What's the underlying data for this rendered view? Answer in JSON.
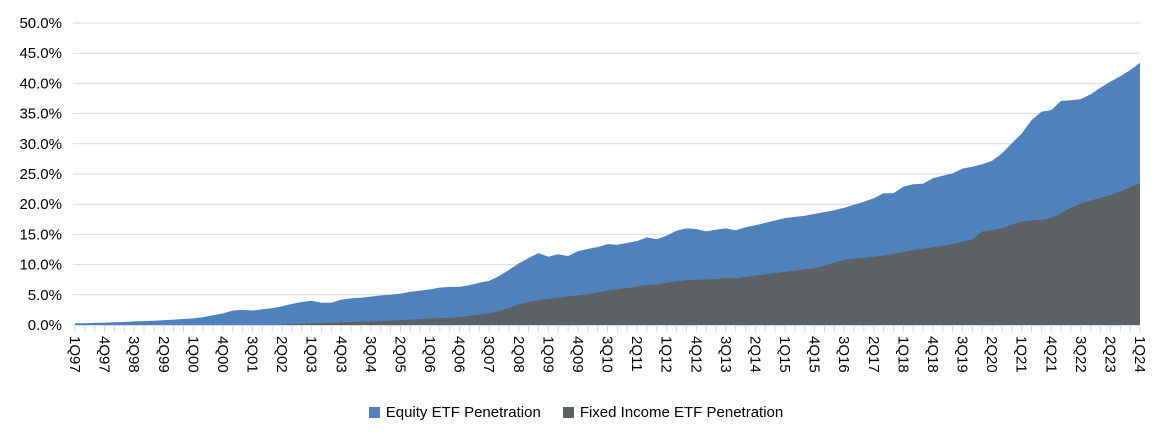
{
  "chart_data": {
    "type": "area",
    "mode": "overlapping",
    "title": "",
    "xlabel": "",
    "ylabel": "",
    "grid": true,
    "legend_position": "bottom",
    "x_unit": "quarter",
    "x_start": "1Q97",
    "x_end": "1Q24",
    "x_label_every_n_points": 3,
    "x_tick_labels": [
      "1Q97",
      "4Q97",
      "3Q98",
      "2Q99",
      "1Q00",
      "4Q00",
      "3Q01",
      "2Q02",
      "1Q03",
      "4Q03",
      "3Q04",
      "2Q05",
      "1Q06",
      "4Q06",
      "3Q07",
      "2Q08",
      "1Q09",
      "4Q09",
      "3Q10",
      "2Q11",
      "1Q12",
      "4Q12",
      "3Q13",
      "2Q14",
      "1Q15",
      "4Q15",
      "3Q16",
      "2Q17",
      "1Q18",
      "4Q18",
      "3Q19",
      "2Q20",
      "1Q21",
      "4Q21",
      "3Q22",
      "2Q23",
      "1Q24"
    ],
    "y_axis": {
      "min": 0,
      "max": 50,
      "step": 5,
      "tick_labels": [
        "50.0%",
        "45.0%",
        "40.0%",
        "35.0%",
        "30.0%",
        "25.0%",
        "20.0%",
        "15.0%",
        "10.0%",
        "5.0%",
        "0.0%"
      ]
    },
    "colors": {
      "gridline": "#D9D9D9",
      "axis_tick": "#D9D9D9",
      "text": "#000000"
    },
    "series": [
      {
        "name": "Equity ETF Penetration",
        "color": "#4F81BD",
        "values": [
          0.3,
          0.3,
          0.35,
          0.4,
          0.45,
          0.5,
          0.6,
          0.65,
          0.7,
          0.8,
          0.9,
          1.0,
          1.1,
          1.3,
          1.6,
          1.9,
          2.4,
          2.5,
          2.4,
          2.6,
          2.8,
          3.1,
          3.5,
          3.8,
          4.0,
          3.7,
          3.7,
          4.2,
          4.4,
          4.5,
          4.7,
          4.9,
          5.0,
          5.2,
          5.5,
          5.7,
          5.9,
          6.2,
          6.3,
          6.3,
          6.6,
          7.0,
          7.3,
          8.1,
          9.1,
          10.2,
          11.1,
          11.9,
          11.3,
          11.7,
          11.4,
          12.2,
          12.6,
          12.9,
          13.4,
          13.3,
          13.6,
          13.9,
          14.5,
          14.2,
          14.8,
          15.6,
          16.0,
          15.9,
          15.5,
          15.8,
          16.0,
          15.7,
          16.2,
          16.5,
          16.9,
          17.3,
          17.7,
          17.9,
          18.1,
          18.4,
          18.7,
          19.0,
          19.4,
          19.9,
          20.4,
          21.0,
          21.8,
          21.8,
          22.9,
          23.3,
          23.4,
          24.3,
          24.7,
          25.1,
          25.9,
          26.2,
          26.6,
          27.2,
          28.4,
          30.1,
          31.7,
          33.9,
          35.3,
          35.6,
          37.1,
          37.2,
          37.4,
          38.2,
          39.3,
          40.3,
          41.2,
          42.2,
          43.4
        ]
      },
      {
        "name": "Fixed Income ETF Penetration",
        "color": "#5E6164",
        "values": [
          0,
          0,
          0,
          0,
          0,
          0,
          0,
          0,
          0,
          0,
          0,
          0,
          0,
          0,
          0,
          0,
          0,
          0,
          0,
          0,
          0,
          0.05,
          0.1,
          0.2,
          0.3,
          0.35,
          0.4,
          0.45,
          0.5,
          0.55,
          0.6,
          0.65,
          0.7,
          0.8,
          0.9,
          1.0,
          1.1,
          1.15,
          1.2,
          1.3,
          1.5,
          1.7,
          1.9,
          2.3,
          2.8,
          3.4,
          3.8,
          4.1,
          4.3,
          4.5,
          4.7,
          4.9,
          5.1,
          5.4,
          5.7,
          5.9,
          6.1,
          6.4,
          6.6,
          6.7,
          7.0,
          7.2,
          7.4,
          7.5,
          7.55,
          7.6,
          7.8,
          7.7,
          8.0,
          8.2,
          8.4,
          8.6,
          8.8,
          9.0,
          9.2,
          9.4,
          9.8,
          10.3,
          10.8,
          11.0,
          11.1,
          11.3,
          11.5,
          11.8,
          12.1,
          12.4,
          12.6,
          12.9,
          13.1,
          13.4,
          13.8,
          14.2,
          15.5,
          15.7,
          16.0,
          16.6,
          17.1,
          17.3,
          17.4,
          17.7,
          18.5,
          19.4,
          20.1,
          20.6,
          21.1,
          21.5,
          22.1,
          22.8,
          23.5
        ]
      }
    ]
  }
}
